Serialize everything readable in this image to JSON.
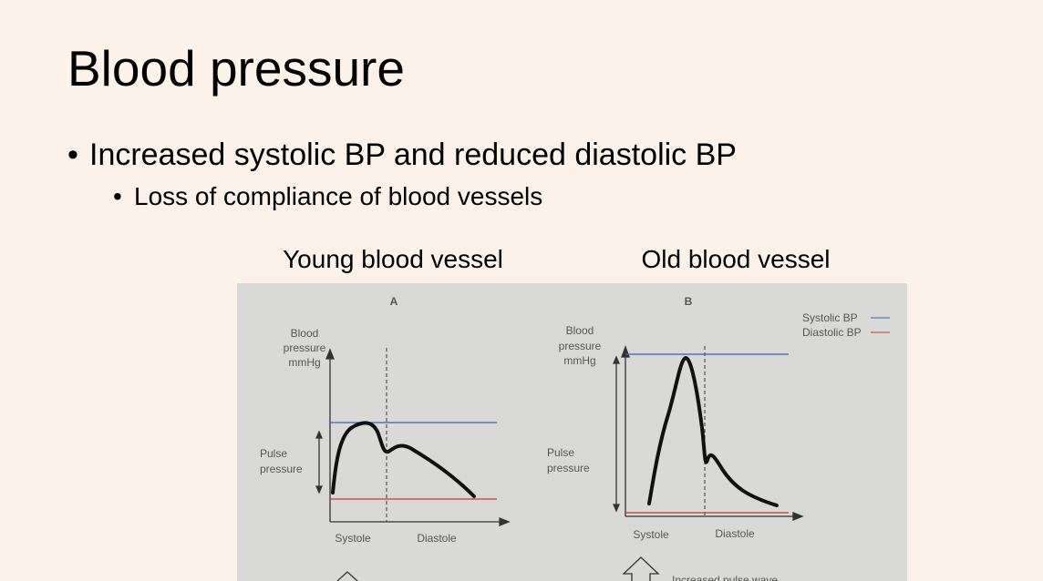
{
  "slide": {
    "title": "Blood pressure",
    "bullets": [
      "Increased systolic BP and reduced diastolic BP"
    ],
    "sub_bullets": [
      "Loss of compliance of blood vessels"
    ],
    "captions": [
      "Young blood vessel",
      "Old blood vessel"
    ]
  },
  "figure": {
    "panels": [
      {
        "label": "A",
        "y_label": [
          "Blood",
          "pressure",
          "mmHg"
        ],
        "pulse_label": [
          "Pulse",
          "pressure"
        ],
        "x_labels": [
          "Systole",
          "Diastole"
        ]
      },
      {
        "label": "B",
        "y_label": [
          "Blood",
          "pressure",
          "mmHg"
        ],
        "pulse_label": [
          "Pulse",
          "pressure"
        ],
        "x_labels": [
          "Systole",
          "Diastole"
        ],
        "note": "Increased pulse wave"
      }
    ],
    "legend": [
      "Systolic BP",
      "Diastolic BP"
    ]
  }
}
